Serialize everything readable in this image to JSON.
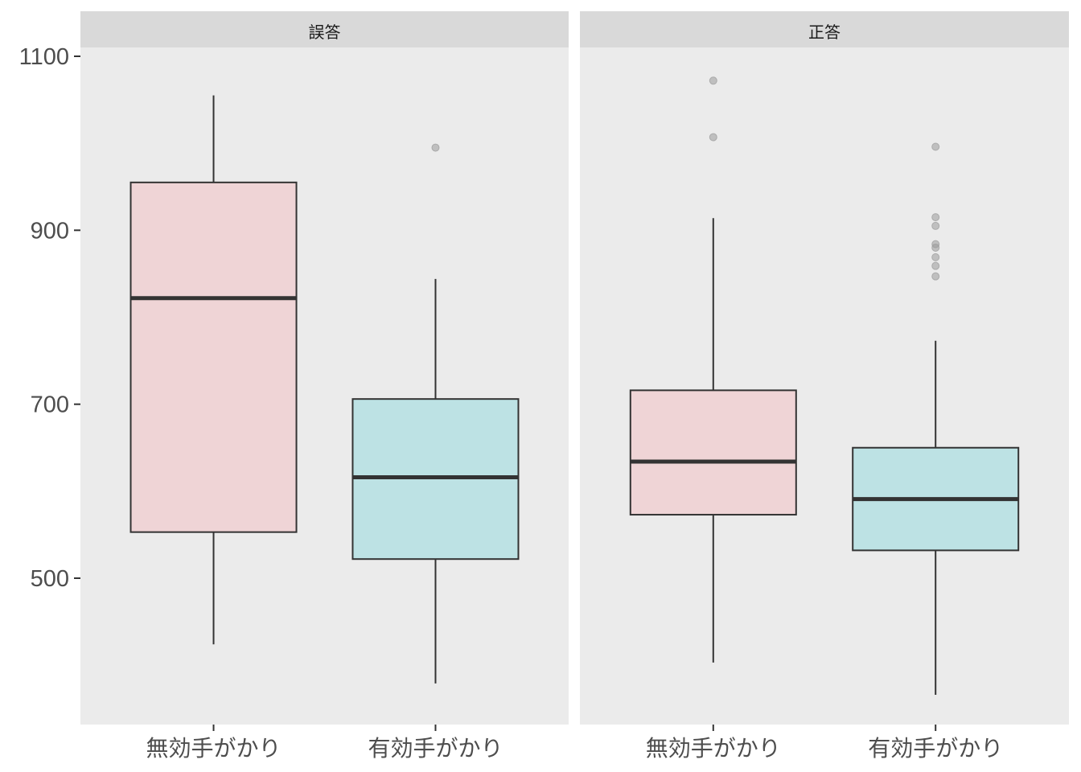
{
  "chart_data": {
    "type": "boxplot",
    "facets": [
      "誤答",
      "正答"
    ],
    "categories": [
      "無効手がかり",
      "有効手がかり"
    ],
    "colors": {
      "無効手がかり": "#efd4d6",
      "有効手がかり": "#bde2e4",
      "panel_background": "#ebebeb",
      "strip_background": "#d9d9d9",
      "box_outline": "#333333",
      "outlier": "#9a9a9a"
    },
    "ylim": [
      333,
      1110
    ],
    "yticks": [
      500,
      700,
      900,
      1100
    ],
    "grid": false,
    "legend": "none",
    "boxes": [
      {
        "facet": "誤答",
        "category": "無効手がかり",
        "whisker_low": 424,
        "q1": 553,
        "median": 822,
        "q3": 955,
        "whisker_high": 1055,
        "outliers": []
      },
      {
        "facet": "誤答",
        "category": "有効手がかり",
        "whisker_low": 379,
        "q1": 522,
        "median": 616,
        "q3": 706,
        "whisker_high": 844,
        "outliers": [
          995
        ]
      },
      {
        "facet": "正答",
        "category": "無効手がかり",
        "whisker_low": 403,
        "q1": 573,
        "median": 634,
        "q3": 716,
        "whisker_high": 914,
        "outliers": [
          1072,
          1007
        ]
      },
      {
        "facet": "正答",
        "category": "有効手がかり",
        "whisker_low": 366,
        "q1": 532,
        "median": 591,
        "q3": 650,
        "whisker_high": 773,
        "outliers": [
          996,
          915,
          905,
          884,
          880,
          869,
          859,
          847
        ]
      }
    ]
  }
}
